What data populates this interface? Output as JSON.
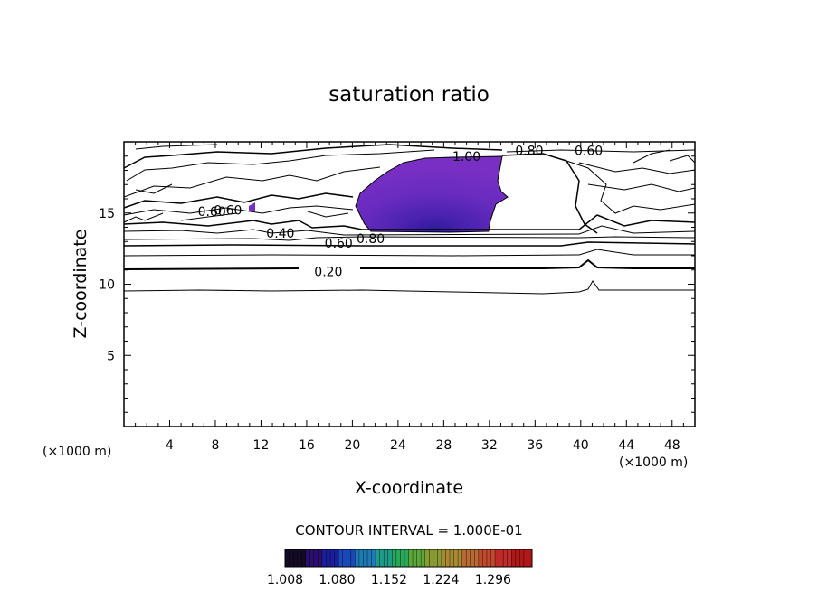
{
  "chart_data": {
    "type": "contour",
    "title": "saturation ratio",
    "xlabel": "X-coordinate",
    "ylabel": "Z-coordinate",
    "x_units": "(×1000 m)",
    "z_units": "(×1000 m)",
    "xlim": [
      0,
      50
    ],
    "ylim": [
      0,
      20
    ],
    "x_ticks": [
      4,
      8,
      12,
      16,
      20,
      24,
      28,
      32,
      36,
      40,
      44,
      48
    ],
    "y_ticks": [
      5,
      10,
      15
    ],
    "contour_interval_text": "CONTOUR INTERVAL = 1.000E-01",
    "contour_labels": [
      {
        "text": "0.20",
        "x": 17.9,
        "z": 10.9
      },
      {
        "text": "0.40",
        "x": 13.7,
        "z": 13.6
      },
      {
        "text": "0.60",
        "x": 18.8,
        "z": 12.9
      },
      {
        "text": "0.80",
        "x": 21.6,
        "z": 13.2
      },
      {
        "text": "0.60",
        "x": 7.7,
        "z": 15.1
      },
      {
        "text": "0.60",
        "x": 9.1,
        "z": 15.2
      },
      {
        "text": "0.80",
        "x": 35.5,
        "z": 19.4
      },
      {
        "text": "0.60",
        "x": 40.7,
        "z": 19.4
      },
      {
        "text": "1.00",
        "x": 30.0,
        "z": 19.0
      }
    ],
    "colorbar": {
      "min": 1.008,
      "max": 1.35,
      "tick_labels": [
        "1.008",
        "1.080",
        "1.152",
        "1.224",
        "1.296"
      ],
      "colors": [
        "#140a28",
        "#2a0f6e",
        "#1a1f9e",
        "#1a48b8",
        "#1d7ab5",
        "#1d9c8a",
        "#2aa85a",
        "#5aa83a",
        "#8a9a32",
        "#a88a32",
        "#b86a32",
        "#c04a2e",
        "#c02a2a",
        "#b01818"
      ]
    },
    "fill_color": "#7a2fc4"
  }
}
